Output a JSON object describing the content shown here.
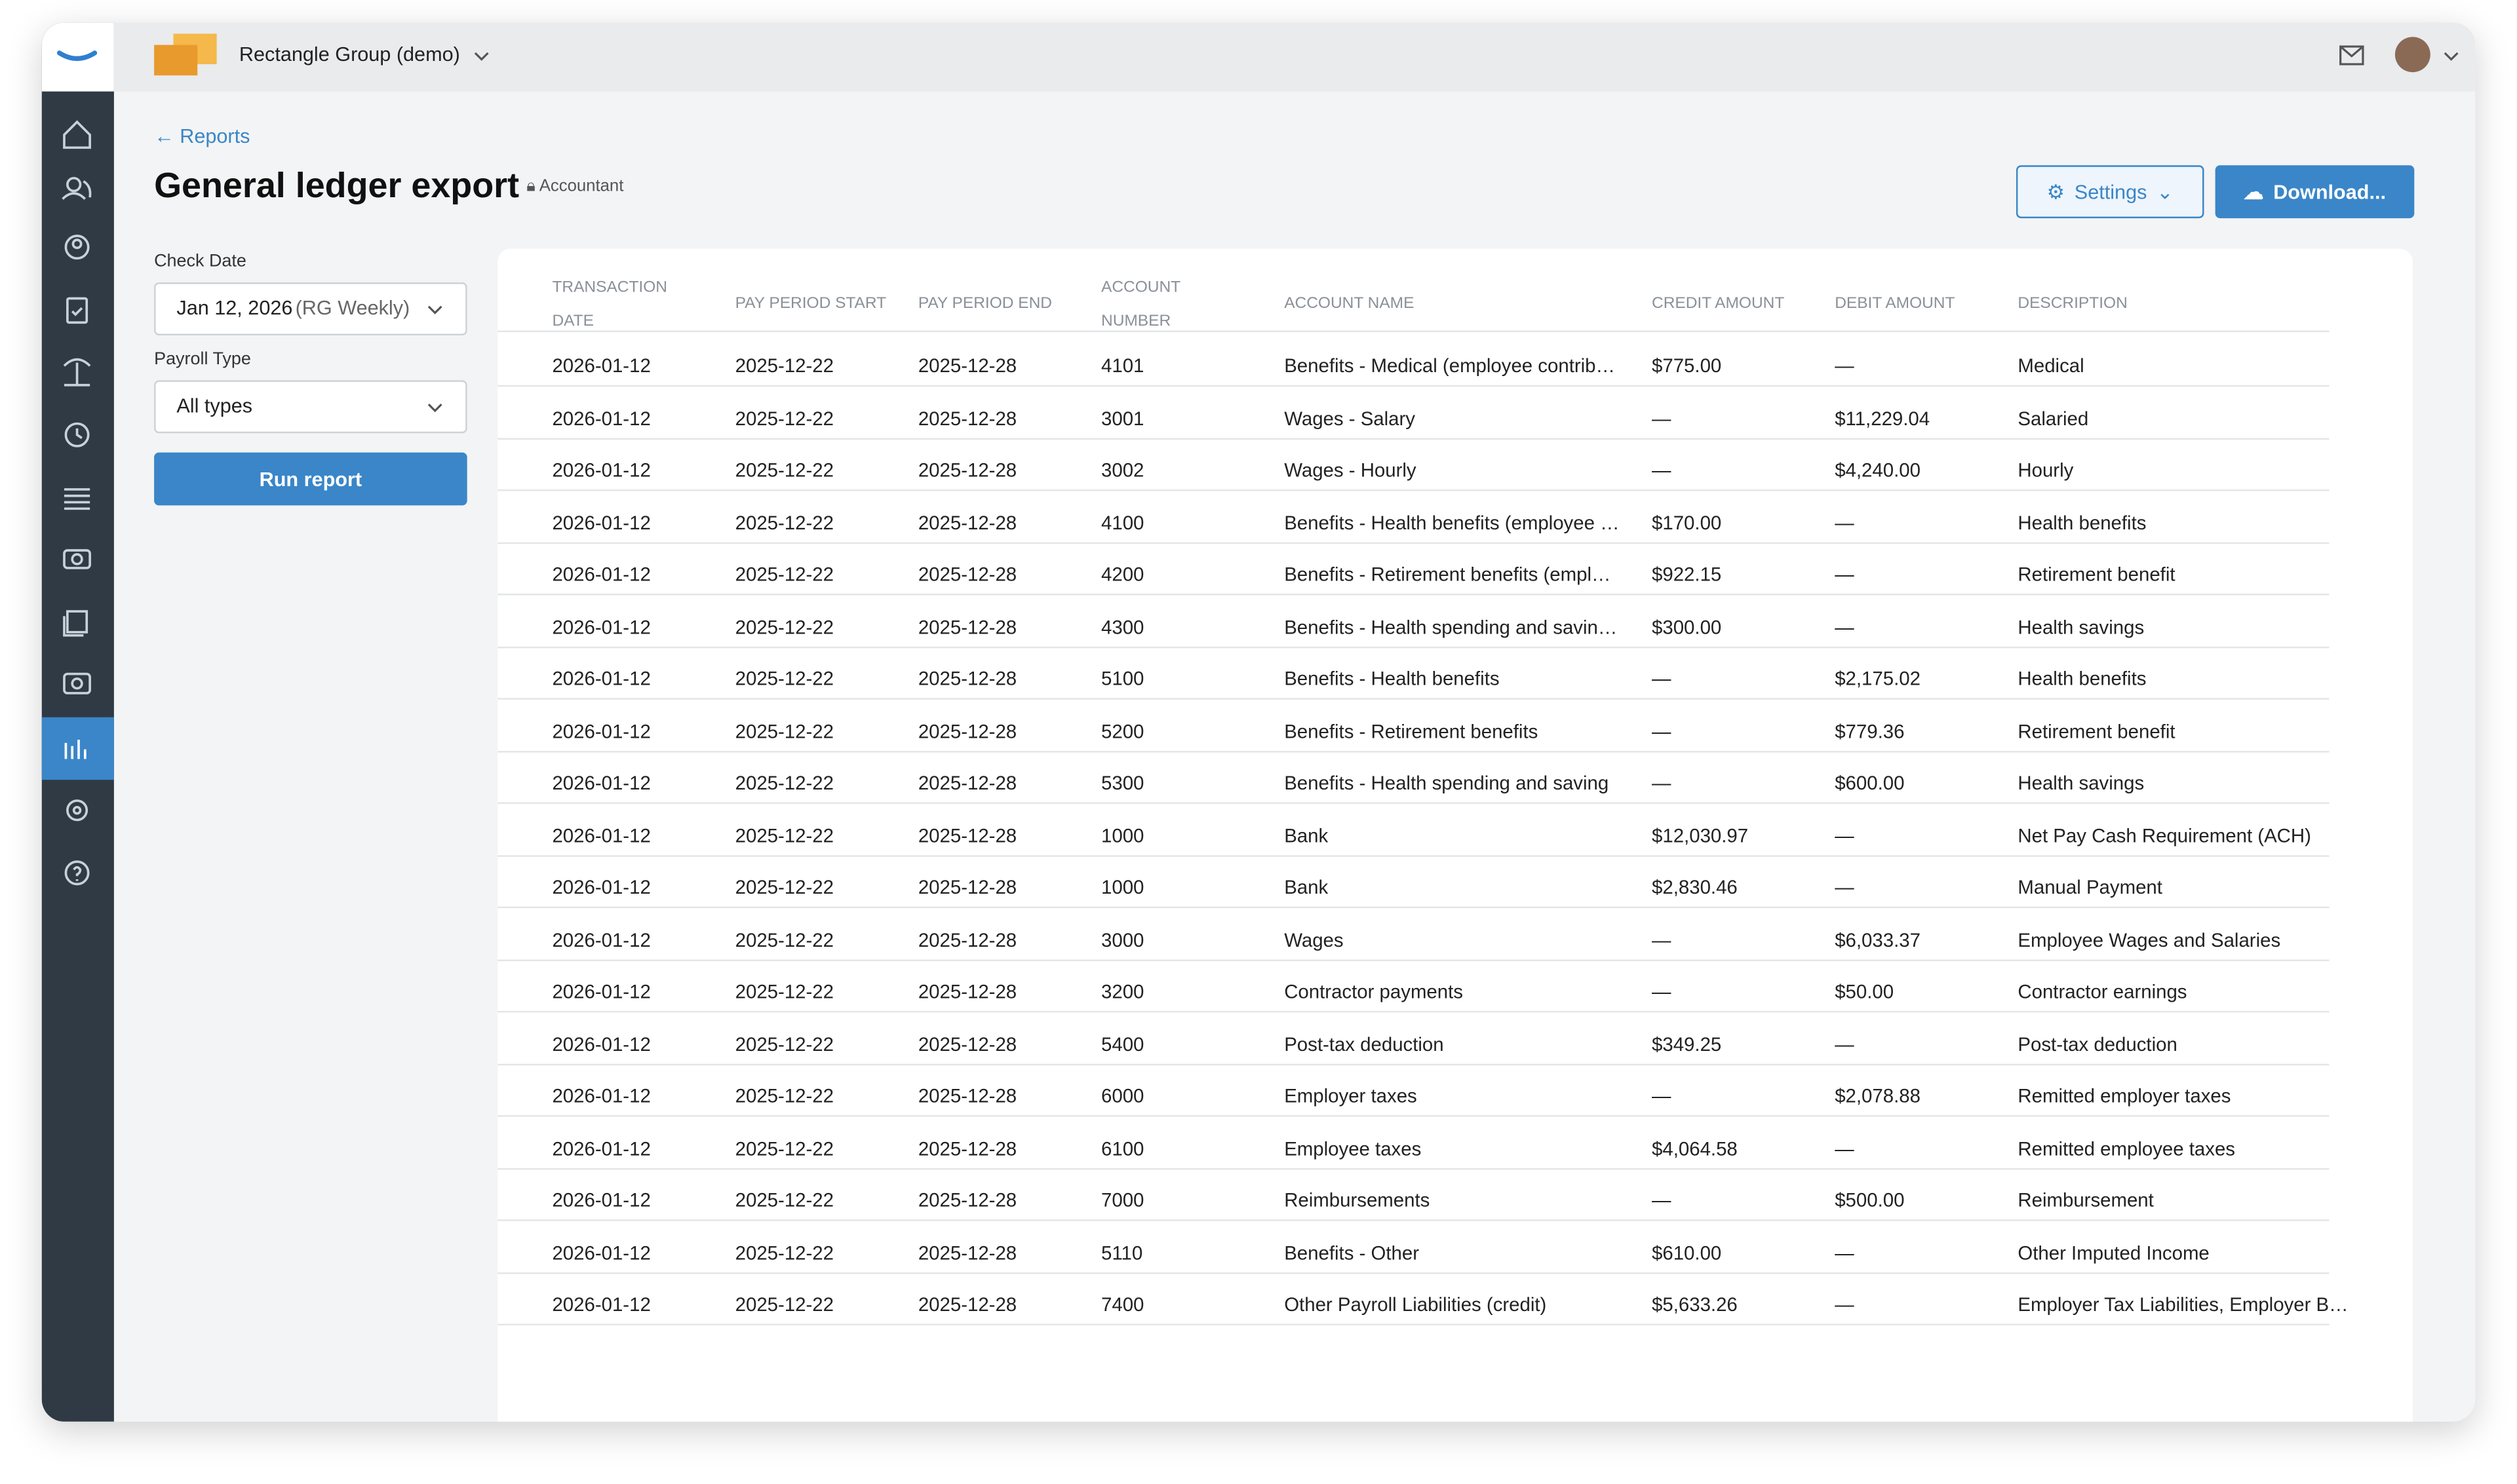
{
  "header": {
    "org": "Rectangle Group (demo)"
  },
  "breadcrumb": "Reports",
  "title": "General ledger export",
  "badge": "Accountant",
  "buttons": {
    "settings": "Settings",
    "download": "Download..."
  },
  "filters": {
    "check_date_label": "Check Date",
    "check_date_value": "Jan 12, 2026",
    "check_date_suffix": "(RG Weekly)",
    "payroll_type_label": "Payroll Type",
    "payroll_type_value": "All types",
    "run": "Run report"
  },
  "table": {
    "columns": [
      "TRANSACTION DATE",
      "PAY PERIOD START",
      "PAY PERIOD END",
      "ACCOUNT NUMBER",
      "ACCOUNT NAME",
      "CREDIT AMOUNT",
      "DEBIT AMOUNT",
      "DESCRIPTION"
    ],
    "rows": [
      [
        "2026-01-12",
        "2025-12-22",
        "2025-12-28",
        "4101",
        "Benefits - Medical (employee contrib…",
        "$775.00",
        "—",
        "Medical"
      ],
      [
        "2026-01-12",
        "2025-12-22",
        "2025-12-28",
        "3001",
        "Wages - Salary",
        "—",
        "$11,229.04",
        "Salaried"
      ],
      [
        "2026-01-12",
        "2025-12-22",
        "2025-12-28",
        "3002",
        "Wages - Hourly",
        "—",
        "$4,240.00",
        "Hourly"
      ],
      [
        "2026-01-12",
        "2025-12-22",
        "2025-12-28",
        "4100",
        "Benefits - Health benefits (employee …",
        "$170.00",
        "—",
        "Health benefits"
      ],
      [
        "2026-01-12",
        "2025-12-22",
        "2025-12-28",
        "4200",
        "Benefits - Retirement benefits (empl…",
        "$922.15",
        "—",
        "Retirement benefit"
      ],
      [
        "2026-01-12",
        "2025-12-22",
        "2025-12-28",
        "4300",
        "Benefits - Health spending and savin…",
        "$300.00",
        "—",
        "Health savings"
      ],
      [
        "2026-01-12",
        "2025-12-22",
        "2025-12-28",
        "5100",
        "Benefits - Health benefits",
        "—",
        "$2,175.02",
        "Health benefits"
      ],
      [
        "2026-01-12",
        "2025-12-22",
        "2025-12-28",
        "5200",
        "Benefits - Retirement benefits",
        "—",
        "$779.36",
        "Retirement benefit"
      ],
      [
        "2026-01-12",
        "2025-12-22",
        "2025-12-28",
        "5300",
        "Benefits - Health spending and saving",
        "—",
        "$600.00",
        "Health savings"
      ],
      [
        "2026-01-12",
        "2025-12-22",
        "2025-12-28",
        "1000",
        "Bank",
        "$12,030.97",
        "—",
        "Net Pay Cash Requirement (ACH)"
      ],
      [
        "2026-01-12",
        "2025-12-22",
        "2025-12-28",
        "1000",
        "Bank",
        "$2,830.46",
        "—",
        "Manual Payment"
      ],
      [
        "2026-01-12",
        "2025-12-22",
        "2025-12-28",
        "3000",
        "Wages",
        "—",
        "$6,033.37",
        "Employee Wages and Salaries"
      ],
      [
        "2026-01-12",
        "2025-12-22",
        "2025-12-28",
        "3200",
        "Contractor payments",
        "—",
        "$50.00",
        "Contractor earnings"
      ],
      [
        "2026-01-12",
        "2025-12-22",
        "2025-12-28",
        "5400",
        "Post-tax deduction",
        "$349.25",
        "—",
        "Post-tax deduction"
      ],
      [
        "2026-01-12",
        "2025-12-22",
        "2025-12-28",
        "6000",
        "Employer taxes",
        "—",
        "$2,078.88",
        "Remitted employer taxes"
      ],
      [
        "2026-01-12",
        "2025-12-22",
        "2025-12-28",
        "6100",
        "Employee taxes",
        "$4,064.58",
        "—",
        "Remitted employee taxes"
      ],
      [
        "2026-01-12",
        "2025-12-22",
        "2025-12-28",
        "7000",
        "Reimbursements",
        "—",
        "$500.00",
        "Reimbursement"
      ],
      [
        "2026-01-12",
        "2025-12-22",
        "2025-12-28",
        "5110",
        "Benefits - Other",
        "$610.00",
        "—",
        "Other Imputed Income"
      ],
      [
        "2026-01-12",
        "2025-12-22",
        "2025-12-28",
        "7400",
        "Other Payroll Liabilities (credit)",
        "$5,633.26",
        "—",
        "Employer Tax Liabilities, Employer B…"
      ]
    ]
  }
}
